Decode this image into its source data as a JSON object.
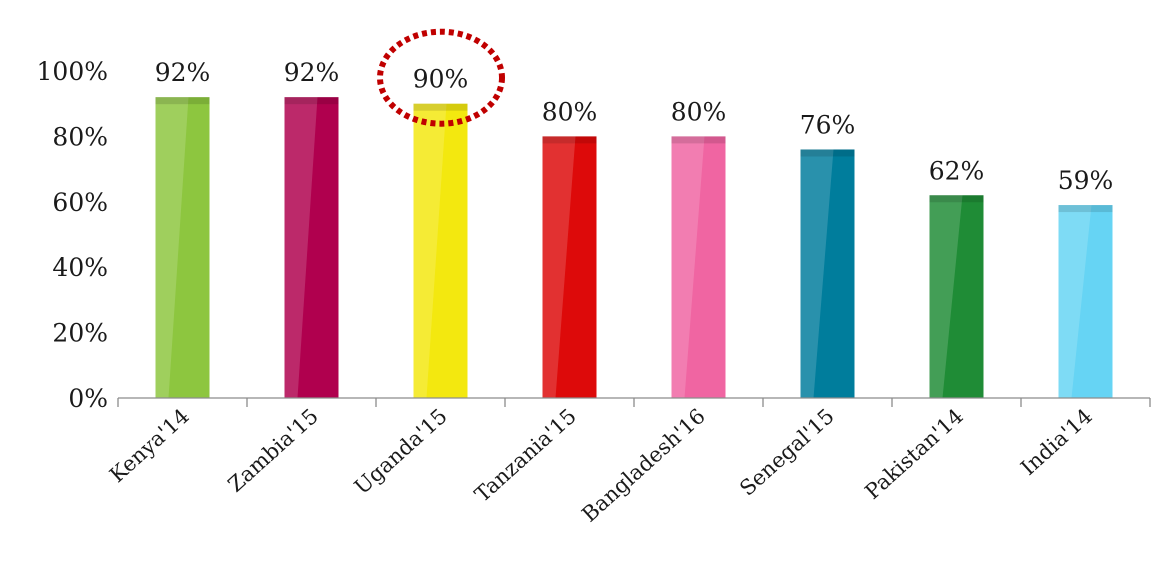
{
  "chart_data": {
    "type": "bar",
    "categories": [
      "Kenya'14",
      "Zambia'15",
      "Uganda'15",
      "Tanzania'15",
      "Bangladesh'16",
      "Senegal'15",
      "Pakistan'14",
      "India'14"
    ],
    "values": [
      92,
      92,
      90,
      80,
      80,
      76,
      62,
      59
    ],
    "data_labels": [
      "92%",
      "92%",
      "90%",
      "80%",
      "80%",
      "76%",
      "62%",
      "59%"
    ],
    "bar_colors": [
      "#8dc63f",
      "#b0004e",
      "#f3e80f",
      "#dd0a0a",
      "#f065a2",
      "#007d9c",
      "#1f8c36",
      "#66d4f4"
    ],
    "ylim": [
      0,
      100
    ],
    "yticks": [
      0,
      20,
      40,
      60,
      80,
      100
    ],
    "ytick_labels": [
      "0%",
      "20%",
      "40%",
      "60%",
      "80%",
      "100%"
    ],
    "highlight": {
      "category": "Uganda'15",
      "style": "dotted-circle",
      "color": "#c00000"
    },
    "grid": false,
    "legend": "none",
    "title": "",
    "xlabel": "",
    "ylabel": ""
  }
}
